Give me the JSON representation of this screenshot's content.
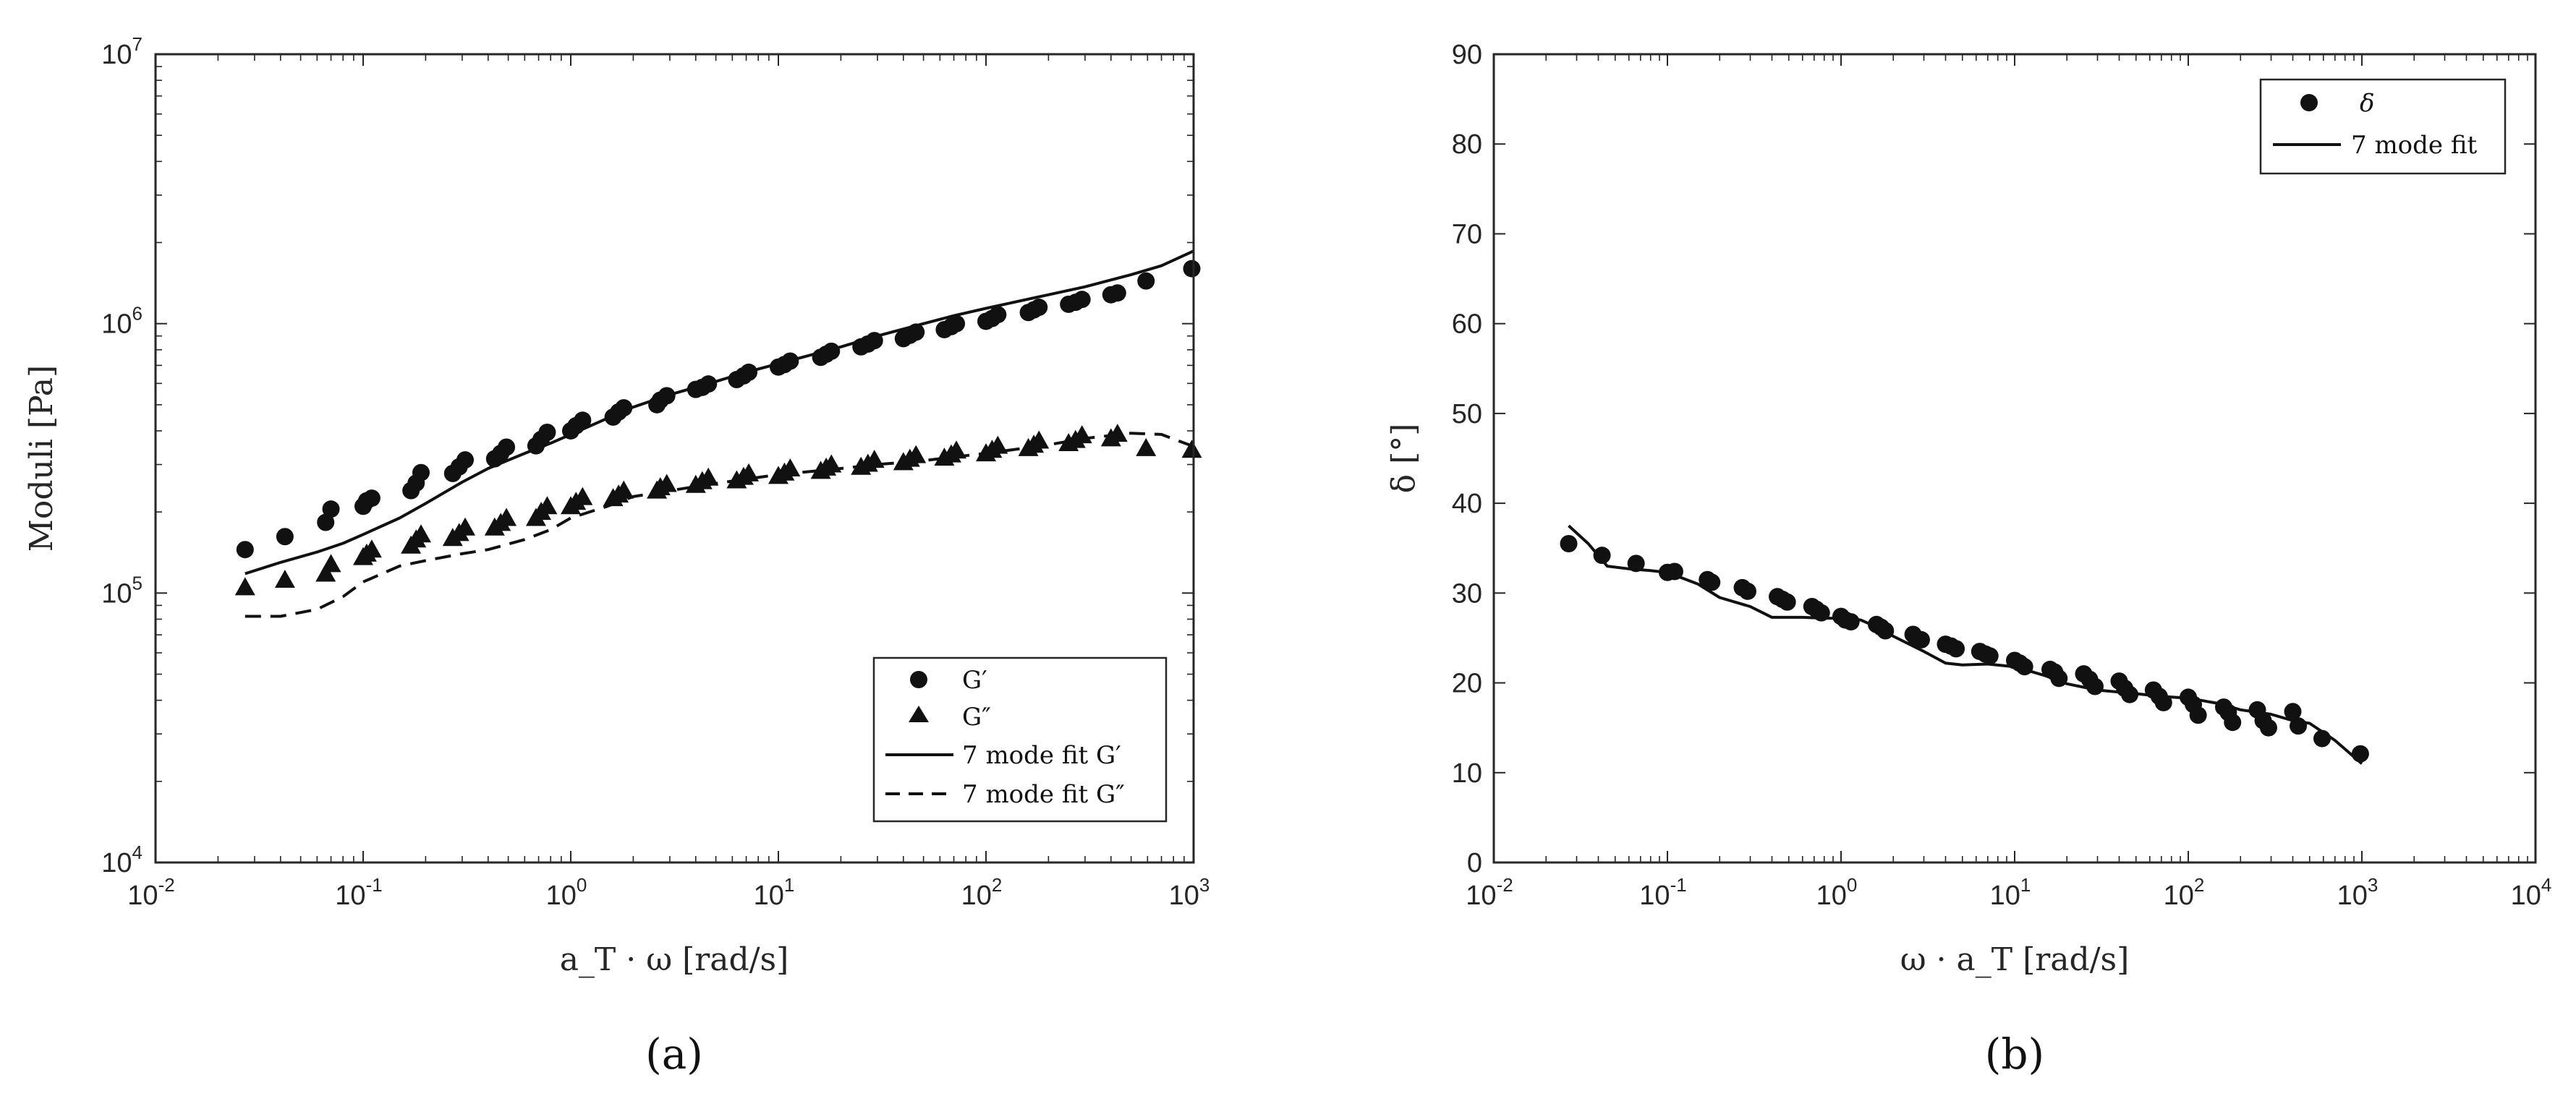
{
  "colors": {
    "ink": "#111111",
    "axis": "#262626",
    "background": "#ffffff"
  },
  "chart_data": [
    {
      "type": "scatter",
      "panel_label": "(a)",
      "xlabel": "a_T · ω [rad/s]",
      "ylabel": "Moduli [Pa]",
      "xscale": "log",
      "yscale": "log",
      "xlim": [
        0.01,
        1000
      ],
      "ylim": [
        10000,
        10000000
      ],
      "x_ticks": [
        {
          "base": "10",
          "exp": "-2"
        },
        {
          "base": "10",
          "exp": "-1"
        },
        {
          "base": "10",
          "exp": "0"
        },
        {
          "base": "10",
          "exp": "1"
        },
        {
          "base": "10",
          "exp": "2"
        },
        {
          "base": "10",
          "exp": "3"
        }
      ],
      "y_ticks": [
        {
          "base": "10",
          "exp": "4"
        },
        {
          "base": "10",
          "exp": "5"
        },
        {
          "base": "10",
          "exp": "6"
        },
        {
          "base": "10",
          "exp": "7"
        }
      ],
      "grid": false,
      "legend_position": "bottom-right",
      "legend": [
        {
          "label": "G′",
          "marker": "circle"
        },
        {
          "label": "G″",
          "marker": "triangle"
        },
        {
          "label": "7 mode fit G′",
          "line": "solid"
        },
        {
          "label": "7 mode fit G″",
          "line": "dashed"
        }
      ],
      "series": [
        {
          "name": "G′",
          "marker": "circle",
          "x": [
            0.027,
            0.042,
            0.066,
            0.07,
            0.1,
            0.104,
            0.11,
            0.17,
            0.18,
            0.19,
            0.27,
            0.29,
            0.31,
            0.43,
            0.46,
            0.49,
            0.68,
            0.72,
            0.77,
            1.0,
            1.06,
            1.14,
            1.6,
            1.7,
            1.8,
            2.6,
            2.7,
            2.9,
            4.0,
            4.3,
            4.6,
            6.3,
            6.8,
            7.2,
            10,
            10.7,
            11.4,
            16,
            17,
            18,
            25,
            27,
            29,
            40,
            43,
            46,
            63,
            68,
            72,
            100,
            107,
            114,
            160,
            170,
            180,
            250,
            270,
            290,
            400,
            430,
            590,
            980
          ],
          "values": [
            145000,
            162000,
            183000,
            205000,
            210000,
            220000,
            225000,
            240000,
            256000,
            280000,
            278000,
            294000,
            312000,
            315000,
            330000,
            348000,
            352000,
            372000,
            395000,
            400000,
            418000,
            438000,
            450000,
            470000,
            487000,
            500000,
            520000,
            540000,
            570000,
            580000,
            597000,
            620000,
            640000,
            660000,
            690000,
            705000,
            726000,
            750000,
            770000,
            790000,
            820000,
            840000,
            865000,
            880000,
            905000,
            930000,
            950000,
            975000,
            1000000,
            1020000,
            1045000,
            1080000,
            1100000,
            1125000,
            1150000,
            1180000,
            1200000,
            1230000,
            1280000,
            1300000,
            1440000,
            1600000
          ]
        },
        {
          "name": "G″",
          "marker": "triangle",
          "x": [
            0.027,
            0.042,
            0.066,
            0.07,
            0.1,
            0.104,
            0.11,
            0.17,
            0.18,
            0.19,
            0.27,
            0.29,
            0.31,
            0.43,
            0.46,
            0.49,
            0.68,
            0.72,
            0.77,
            1.0,
            1.06,
            1.14,
            1.6,
            1.7,
            1.8,
            2.6,
            2.7,
            2.9,
            4.0,
            4.3,
            4.6,
            6.3,
            6.8,
            7.2,
            10,
            10.7,
            11.4,
            16,
            17,
            18,
            25,
            27,
            29,
            40,
            43,
            46,
            63,
            68,
            72,
            100,
            107,
            114,
            160,
            170,
            180,
            250,
            270,
            290,
            400,
            430,
            590,
            980
          ],
          "values": [
            105000,
            112000,
            118000,
            128000,
            136000,
            140000,
            145000,
            150000,
            158000,
            165000,
            160000,
            167000,
            175000,
            175000,
            182000,
            190000,
            190000,
            200000,
            210000,
            210000,
            218000,
            227000,
            225000,
            232000,
            240000,
            240000,
            247000,
            254000,
            252000,
            260000,
            268000,
            262000,
            270000,
            278000,
            272000,
            280000,
            290000,
            284000,
            292000,
            300000,
            294000,
            302000,
            312000,
            306000,
            315000,
            325000,
            318000,
            327000,
            338000,
            330000,
            340000,
            352000,
            345000,
            355000,
            368000,
            360000,
            370000,
            385000,
            375000,
            390000,
            345000,
            340000
          ]
        },
        {
          "name": "7 mode fit G′",
          "line": "solid",
          "x": [
            0.027,
            0.04,
            0.06,
            0.08,
            0.1,
            0.15,
            0.2,
            0.3,
            0.4,
            0.6,
            0.8,
            1.0,
            1.5,
            2,
            3,
            5,
            7,
            10,
            20,
            30,
            50,
            70,
            100,
            200,
            300,
            500,
            700,
            1000
          ],
          "values": [
            118000,
            130000,
            142000,
            153000,
            165000,
            190000,
            215000,
            258000,
            290000,
            330000,
            360000,
            388000,
            445000,
            490000,
            545000,
            610000,
            660000,
            710000,
            820000,
            900000,
            1000000,
            1070000,
            1140000,
            1280000,
            1370000,
            1520000,
            1640000,
            1860000
          ]
        },
        {
          "name": "7 mode fit G″",
          "line": "dashed",
          "x": [
            0.027,
            0.04,
            0.06,
            0.08,
            0.1,
            0.15,
            0.2,
            0.3,
            0.4,
            0.6,
            0.8,
            1.0,
            1.5,
            2,
            3,
            5,
            7,
            10,
            20,
            30,
            50,
            70,
            100,
            200,
            300,
            500,
            700,
            1000
          ],
          "values": [
            82000,
            82000,
            87000,
            97000,
            110000,
            126000,
            132000,
            140000,
            145000,
            158000,
            172000,
            190000,
            210000,
            228000,
            240000,
            255000,
            265000,
            275000,
            290000,
            300000,
            310000,
            320000,
            330000,
            355000,
            375000,
            392000,
            388000,
            350000
          ]
        }
      ]
    },
    {
      "type": "scatter",
      "panel_label": "(b)",
      "xlabel": "ω · a_T [rad/s]",
      "ylabel": "δ [°]",
      "xscale": "log",
      "yscale": "linear",
      "xlim": [
        0.01,
        10000
      ],
      "ylim": [
        0,
        90
      ],
      "x_ticks": [
        {
          "base": "10",
          "exp": "-2"
        },
        {
          "base": "10",
          "exp": "-1"
        },
        {
          "base": "10",
          "exp": "0"
        },
        {
          "base": "10",
          "exp": "1"
        },
        {
          "base": "10",
          "exp": "2"
        },
        {
          "base": "10",
          "exp": "3"
        },
        {
          "base": "10",
          "exp": "4"
        }
      ],
      "y_ticks": [
        "0",
        "10",
        "20",
        "30",
        "40",
        "50",
        "60",
        "70",
        "80",
        "90"
      ],
      "y_tick_values": [
        0,
        10,
        20,
        30,
        40,
        50,
        60,
        70,
        80,
        90
      ],
      "grid": false,
      "legend_position": "top-right",
      "legend": [
        {
          "label": "δ",
          "marker": "circle"
        },
        {
          "label": "7 mode fit",
          "line": "solid"
        }
      ],
      "series": [
        {
          "name": "δ",
          "marker": "circle",
          "x": [
            0.027,
            0.042,
            0.066,
            0.1,
            0.11,
            0.17,
            0.18,
            0.27,
            0.29,
            0.43,
            0.46,
            0.49,
            0.68,
            0.72,
            0.77,
            1.0,
            1.06,
            1.14,
            1.6,
            1.7,
            1.8,
            2.6,
            2.7,
            2.9,
            4.0,
            4.3,
            4.6,
            6.3,
            6.8,
            7.2,
            10,
            10.7,
            11.4,
            16,
            17,
            18,
            25,
            27,
            29,
            40,
            43,
            46,
            63,
            68,
            72,
            100,
            107,
            114,
            160,
            170,
            180,
            250,
            270,
            290,
            400,
            430,
            590,
            980
          ],
          "values": [
            35.5,
            34.2,
            33.3,
            32.3,
            32.4,
            31.5,
            31.2,
            30.6,
            30.2,
            29.6,
            29.3,
            29.0,
            28.5,
            28.2,
            27.8,
            27.4,
            27.0,
            26.8,
            26.5,
            26.2,
            25.8,
            25.4,
            25.0,
            24.8,
            24.3,
            24.1,
            23.8,
            23.5,
            23.2,
            23.0,
            22.5,
            22.2,
            21.8,
            21.5,
            21.2,
            20.5,
            21.0,
            20.4,
            19.6,
            20.2,
            19.4,
            18.7,
            19.2,
            18.5,
            17.8,
            18.4,
            17.6,
            16.4,
            17.3,
            16.7,
            15.6,
            17.0,
            15.8,
            15.0,
            16.8,
            15.2,
            13.8,
            12.1
          ]
        },
        {
          "name": "7 mode fit",
          "line": "solid",
          "x": [
            0.027,
            0.035,
            0.045,
            0.06,
            0.08,
            0.1,
            0.15,
            0.2,
            0.3,
            0.4,
            0.6,
            0.8,
            1.0,
            1.3,
            1.7,
            2,
            3,
            4,
            5,
            7,
            10,
            15,
            20,
            30,
            50,
            70,
            100,
            150,
            200,
            300,
            400,
            500,
            700,
            1000
          ],
          "values": [
            37.5,
            35.5,
            33.0,
            32.7,
            32.5,
            32.3,
            31.0,
            29.5,
            28.5,
            27.3,
            27.3,
            27.2,
            27.2,
            27.0,
            26.0,
            25.2,
            23.5,
            22.2,
            22.0,
            22.1,
            21.8,
            20.8,
            19.9,
            19.2,
            18.8,
            18.5,
            18.3,
            17.7,
            17.0,
            16.5,
            15.8,
            15.5,
            13.6,
            11.0
          ]
        }
      ]
    }
  ]
}
